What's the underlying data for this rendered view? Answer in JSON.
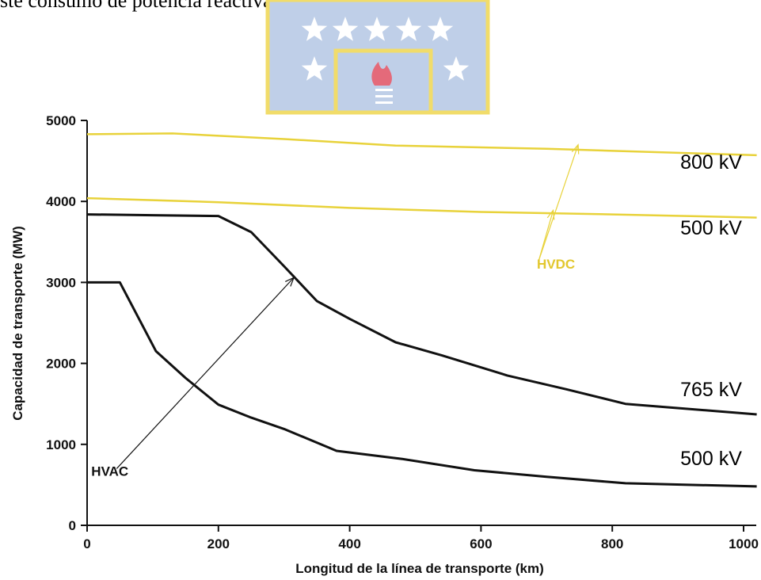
{
  "header_text": "ste consumo de potencia reactiva en sistemas DC.",
  "colors": {
    "hvac": "#111111",
    "hvdc": "#e8d23a",
    "hvdc_label": "#e2c72d",
    "logo_bg": "#bfcfe8",
    "logo_border": "#f1dc6a",
    "logo_star": "#ffffff",
    "logo_flame": "#e46a7a"
  },
  "logo": {
    "icon": "university-seal-stars-torch"
  },
  "chart_data": {
    "type": "line",
    "xlabel": "Longitud de la línea de transporte (km)",
    "ylabel": "Capacidad de transporte (MW)",
    "xlim": [
      0,
      1000
    ],
    "ylim": [
      0,
      5000
    ],
    "xticks": [
      "0",
      "200",
      "400",
      "600",
      "800",
      "1000"
    ],
    "yticks": [
      "0",
      "1000",
      "2000",
      "3000",
      "4000",
      "5000"
    ],
    "grid": false,
    "series": [
      {
        "name": "800 kV",
        "group": "HVDC",
        "x": [
          0,
          130,
          300,
          470,
          700,
          1020
        ],
        "y": [
          4830,
          4840,
          4770,
          4690,
          4650,
          4570
        ]
      },
      {
        "name": "500 kV",
        "group": "HVDC",
        "x": [
          0,
          200,
          400,
          600,
          800,
          1020
        ],
        "y": [
          4040,
          3990,
          3920,
          3870,
          3840,
          3800
        ]
      },
      {
        "name": "765 kV",
        "group": "HVAC",
        "x": [
          0,
          100,
          200,
          250,
          300,
          350,
          400,
          470,
          540,
          640,
          730,
          820,
          1020
        ],
        "y": [
          3840,
          3830,
          3820,
          3620,
          3200,
          2770,
          2550,
          2260,
          2100,
          1850,
          1680,
          1500,
          1370
        ]
      },
      {
        "name": "500 kV",
        "group": "HVAC",
        "x": [
          0,
          50,
          105,
          150,
          200,
          250,
          300,
          380,
          480,
          590,
          700,
          820,
          1020
        ],
        "y": [
          3000,
          3000,
          2150,
          1820,
          1490,
          1330,
          1190,
          920,
          820,
          680,
          600,
          520,
          480
        ]
      }
    ],
    "annotations": [
      {
        "text": "HVAC",
        "group": "HVAC",
        "label_at": [
          45,
          700
        ],
        "arrows": [
          {
            "from": [
              45,
              700
            ],
            "to": [
              315,
              3060
            ]
          }
        ]
      },
      {
        "text": "HVDC",
        "group": "HVDC",
        "label_at": [
          690,
          3230
        ],
        "arrows": [
          {
            "from": [
              688,
              3270
            ],
            "to": [
              710,
              3890
            ]
          },
          {
            "from": [
              688,
              3270
            ],
            "to": [
              748,
              4700
            ]
          }
        ]
      }
    ]
  }
}
